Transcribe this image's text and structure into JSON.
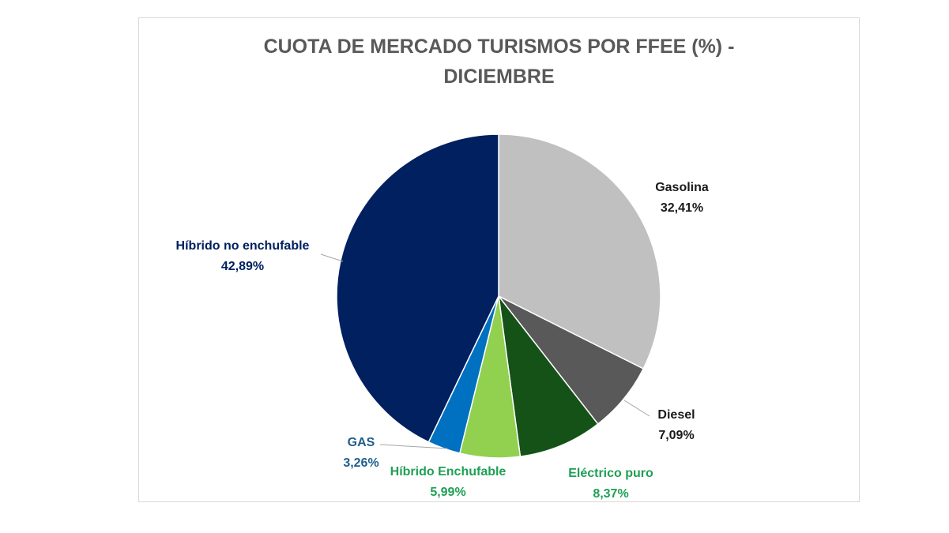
{
  "chart_data": {
    "type": "pie",
    "title_lines": [
      "CUOTA DE MERCADO TURISMOS POR FFEE (%) -",
      "DICIEMBRE"
    ],
    "slices": [
      {
        "name": "Gasolina",
        "value": 32.41,
        "label": "32,41%",
        "color": "#c0c0c0",
        "text_color": "#1a1a1a"
      },
      {
        "name": "Diesel",
        "value": 7.09,
        "label": "7,09%",
        "color": "#595959",
        "text_color": "#1a1a1a"
      },
      {
        "name": "Eléctrico puro",
        "value": 8.37,
        "label": "8,37%",
        "color": "#145218",
        "text_color": "#1fa055"
      },
      {
        "name": "Híbrido Enchufable",
        "value": 5.99,
        "label": "5,99%",
        "color": "#92d050",
        "text_color": "#1fa055"
      },
      {
        "name": "GAS",
        "value": 3.26,
        "label": "3,26%",
        "color": "#0070c0",
        "text_color": "#1f5f8b"
      },
      {
        "name": "Híbrido no enchufable",
        "value": 42.89,
        "label": "42,89%",
        "color": "#002060",
        "text_color": "#002060"
      }
    ],
    "legend": "none"
  }
}
